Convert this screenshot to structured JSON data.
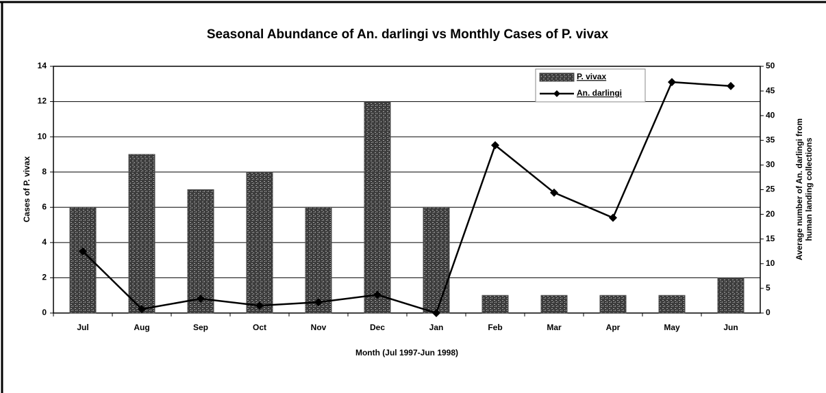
{
  "chart_data": {
    "type": "bar_line",
    "title": "Seasonal Abundance of An. darlingi vs Monthly Cases of P. vivax",
    "xlabel": "Month (Jul 1997-Jun 1998)",
    "ylabel": "Cases of P. vivax",
    "y2label": [
      "Average number of An. darlingi from",
      "human landing collections"
    ],
    "categories": [
      "Jul",
      "Aug",
      "Sep",
      "Oct",
      "Nov",
      "Dec",
      "Jan",
      "Feb",
      "Mar",
      "Apr",
      "May",
      "Jun"
    ],
    "series": [
      {
        "name": "P. vivax",
        "color": "#4a4a4a",
        "kind": "bar",
        "values": [
          6,
          9,
          7,
          8,
          6,
          12,
          6,
          1,
          1,
          1,
          1,
          2
        ]
      },
      {
        "name": "An. darlingi",
        "color": "#000000",
        "kind": "line",
        "axis": "y2",
        "values": [
          12.5,
          0.8,
          2.9,
          1.5,
          2.2,
          3.7,
          0,
          34,
          24.4,
          19.3,
          46.8,
          46
        ]
      }
    ],
    "ylim": [
      0,
      14
    ],
    "yticks": [
      0,
      2,
      4,
      6,
      8,
      10,
      12,
      14
    ],
    "y2lim": [
      0,
      50
    ],
    "y2ticks": [
      0,
      5,
      10,
      15,
      20,
      25,
      30,
      35,
      40,
      45,
      50
    ],
    "grid": true,
    "legend": "top-right"
  }
}
